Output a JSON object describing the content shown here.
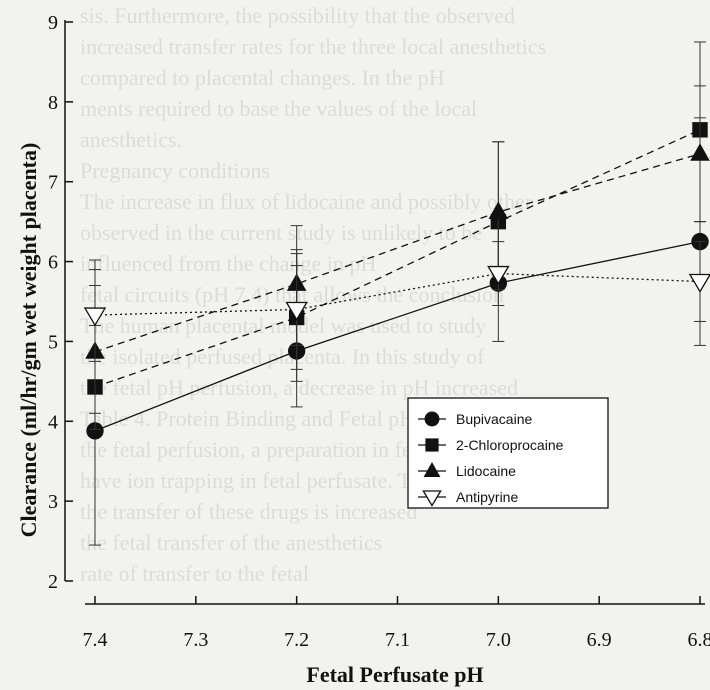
{
  "page": {
    "background_text": [
      "sis. Furthermore, the possibility that the observed",
      "increased transfer rates for the three local anesthetics",
      "compared to placental changes. In the pH",
      "ments required to base the values of the local",
      "anesthetics.",
      "Pregnancy conditions",
      "The increase in flux of lidocaine and possibly other",
      "observed in the current study is unlikely to be",
      "influenced from the change in pH",
      "fetal circuits (pH 7.4) that allows the conclusion",
      "",
      "The human placental model was used to study",
      "the isolated perfused placenta. In this study of",
      "the fetal pH perfusion, a decrease in pH increased",
      "Table 4. Protein Binding and Fetal pH",
      "the fetal perfusion, a preparation in fetal",
      "have ion trapping in fetal perfusate. Therefore,",
      "the transfer of these drugs is increased",
      "the fetal transfer of the anesthetics",
      "rate of transfer to the fetal"
    ]
  },
  "chart_data": {
    "type": "line",
    "xlabel": "Fetal Perfusate pH",
    "ylabel": "Clearance (ml/hr/gm wet weight placenta)",
    "xlim": [
      7.4,
      6.8
    ],
    "ylim": [
      2,
      9
    ],
    "x_ticks": [
      "7.4",
      "7.3",
      "7.2",
      "7.1",
      "7.0",
      "6.9",
      "6.8"
    ],
    "y_ticks": [
      "2",
      "3",
      "4",
      "5",
      "6",
      "7",
      "8",
      "9"
    ],
    "x": [
      7.4,
      7.2,
      7.0,
      6.8
    ],
    "series": [
      {
        "name": "Bupivacaine",
        "marker": "circle",
        "line": "solid",
        "values": [
          3.88,
          4.88,
          5.73,
          6.25
        ],
        "error_upper": [
          6.02,
          5.95,
          6.52,
          7.8
        ],
        "error_lower": [
          2.45,
          4.18,
          5.0,
          4.95
        ]
      },
      {
        "name": "2-Chloroprocaine",
        "marker": "square",
        "line": "dashed",
        "values": [
          4.43,
          5.3,
          6.5,
          7.65
        ],
        "error_upper": [
          5.2,
          6.1,
          7.5,
          8.75
        ],
        "error_lower": [
          3.9,
          4.5,
          5.65,
          6.5
        ]
      },
      {
        "name": "Lidocaine",
        "marker": "triangle",
        "line": "dashed",
        "values": [
          4.87,
          5.72,
          6.62,
          7.35
        ],
        "error_upper": [
          5.7,
          6.45,
          7.5,
          8.2
        ],
        "error_lower": [
          4.1,
          4.95,
          5.8,
          6.5
        ]
      },
      {
        "name": "Antipyrine",
        "marker": "triangle-down-open",
        "line": "dotted",
        "values": [
          5.33,
          5.4,
          5.85,
          5.75
        ],
        "error_upper": [
          5.9,
          6.15,
          6.25,
          6.25
        ],
        "error_lower": [
          4.75,
          4.65,
          5.45,
          5.25
        ]
      }
    ],
    "legend_position": "lower-right",
    "grid": false
  }
}
